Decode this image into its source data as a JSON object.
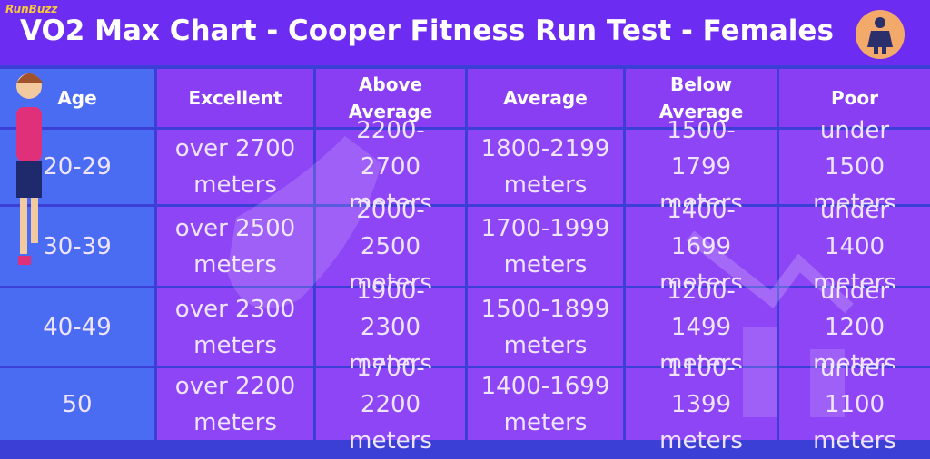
{
  "header": {
    "logo": "RunBuzz",
    "title": "VO2 Max Chart - Cooper Fitness Run Test - Females"
  },
  "table": {
    "columns": [
      "Age",
      "Excellent",
      "Above Average",
      "Average",
      "Below Average",
      "Poor"
    ],
    "rows": [
      [
        "20-29",
        "over 2700 meters",
        "2200-2700 meters",
        "1800-2199 meters",
        "1500-1799 meters",
        "under 1500 meters"
      ],
      [
        "30-39",
        "over 2500 meters",
        "2000-2500 meters",
        "1700-1999 meters",
        "1400-1699 meters",
        "under 1400 meters"
      ],
      [
        "40-49",
        "over 2300 meters",
        "1900-2300 meters",
        "1500-1899 meters",
        "1200-1499 meters",
        "under 1200 meters"
      ],
      [
        "50",
        "over 2200 meters",
        "1700-2200 meters",
        "1400-1699 meters",
        "1100-1399 meters",
        "under 1100 meters"
      ]
    ]
  }
}
